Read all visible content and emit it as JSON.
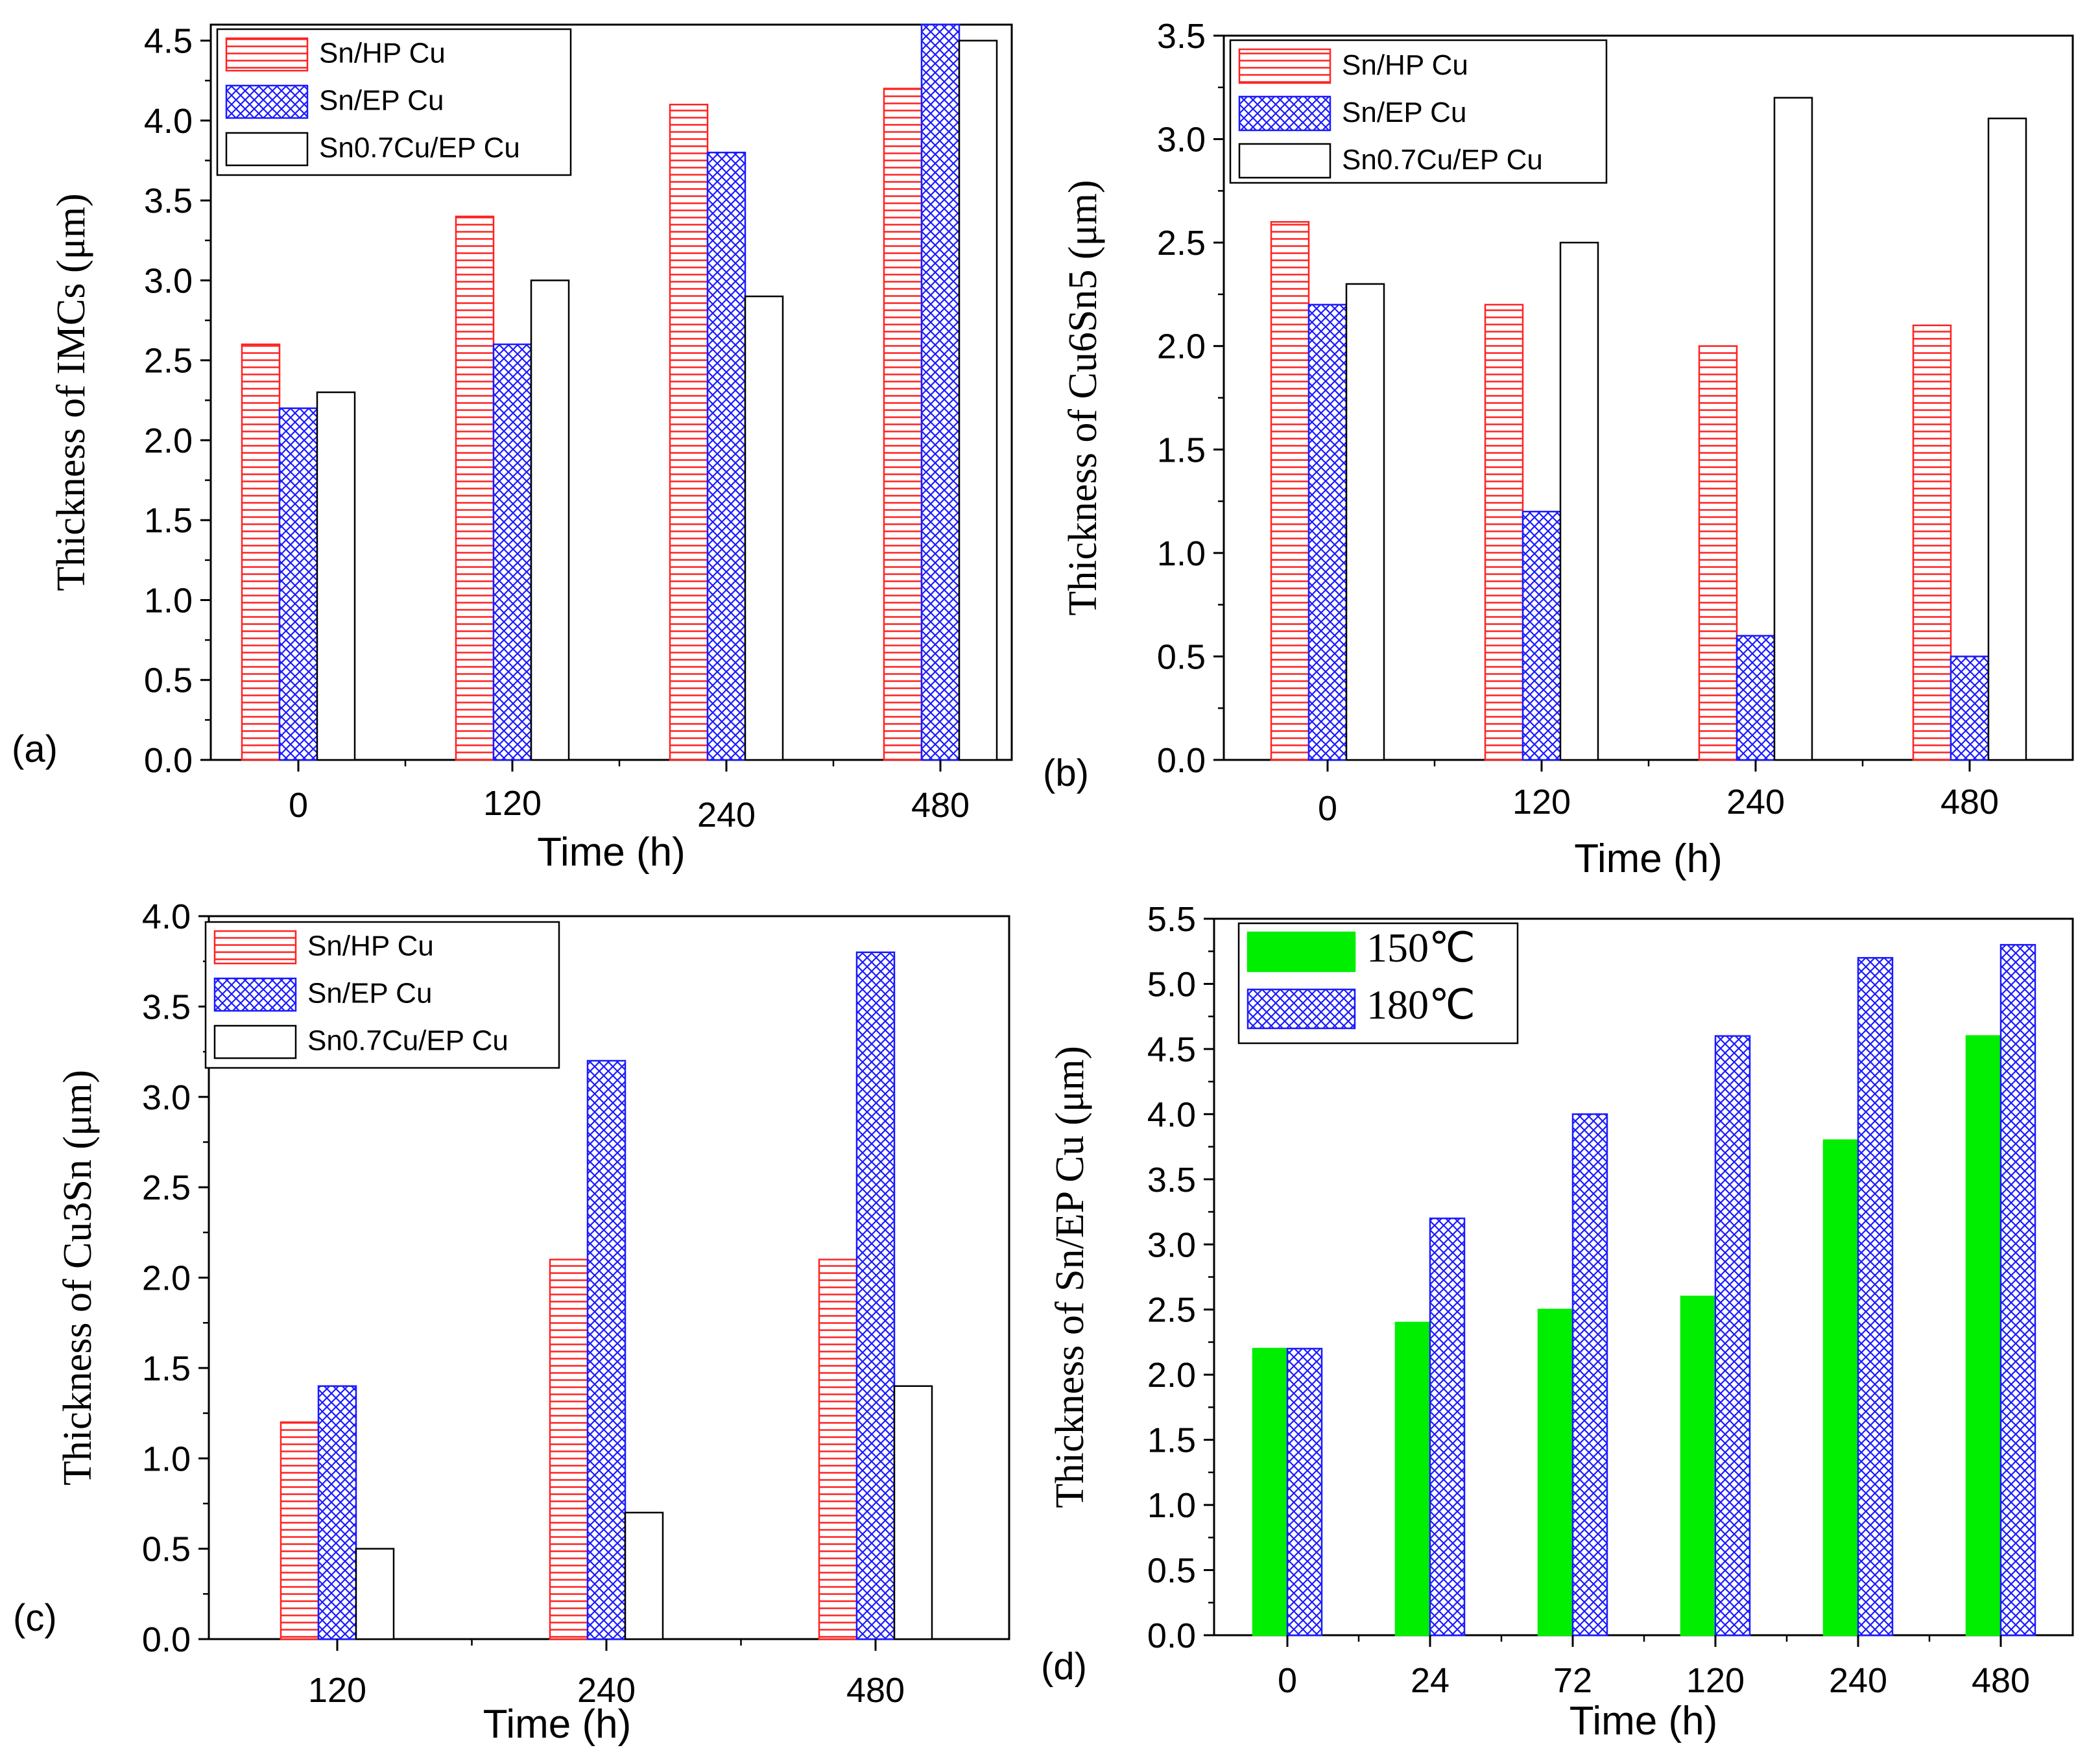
{
  "colors": {
    "hp": "#ff2222",
    "ep": "#1a1aff",
    "cu07": "#000000",
    "c150": "#00ee00",
    "c180": "#1a1aff"
  },
  "chart_data": [
    {
      "panel": "(a)",
      "type": "bar",
      "xlabel": "Time (h)",
      "ylabel": "Thickness of IMCs (μm)",
      "categories": [
        "0",
        "120",
        "240",
        "480"
      ],
      "ylim": [
        0,
        4.6
      ],
      "yticks": [
        "0.0",
        "0.5",
        "1.0",
        "1.5",
        "2.0",
        "2.5",
        "3.0",
        "3.5",
        "4.0",
        "4.5"
      ],
      "series": [
        {
          "name": "Sn/HP Cu",
          "pattern": "hlines-red",
          "values": [
            2.6,
            3.4,
            4.1,
            4.2
          ]
        },
        {
          "name": "Sn/EP Cu",
          "pattern": "cross-blue",
          "values": [
            2.2,
            2.6,
            3.8,
            4.6
          ]
        },
        {
          "name": "Sn0.7Cu/EP Cu",
          "pattern": "open-black",
          "values": [
            2.3,
            3.0,
            2.9,
            4.5
          ]
        }
      ],
      "legend": "top-left"
    },
    {
      "panel": "(b)",
      "type": "bar",
      "xlabel": "Time (h)",
      "ylabel": "Thickness of Cu6Sn5 (μm)",
      "categories": [
        "0",
        "120",
        "240",
        "480"
      ],
      "ylim": [
        0,
        3.5
      ],
      "yticks": [
        "0.0",
        "0.5",
        "1.0",
        "1.5",
        "2.0",
        "2.5",
        "3.0",
        "3.5"
      ],
      "series": [
        {
          "name": "Sn/HP Cu",
          "pattern": "hlines-red",
          "values": [
            2.6,
            2.2,
            2.0,
            2.1
          ]
        },
        {
          "name": "Sn/EP Cu",
          "pattern": "cross-blue",
          "values": [
            2.2,
            1.2,
            0.6,
            0.5
          ]
        },
        {
          "name": "Sn0.7Cu/EP Cu",
          "pattern": "open-black",
          "values": [
            2.3,
            2.5,
            3.2,
            3.1
          ]
        }
      ],
      "legend": "top-left"
    },
    {
      "panel": "(c)",
      "type": "bar",
      "xlabel": "Time (h)",
      "ylabel": "Thickness of Cu3Sn (μm)",
      "categories": [
        "120",
        "240",
        "480"
      ],
      "ylim": [
        0,
        4.0
      ],
      "yticks": [
        "0.0",
        "0.5",
        "1.0",
        "1.5",
        "2.0",
        "2.5",
        "3.0",
        "3.5",
        "4.0"
      ],
      "series": [
        {
          "name": "Sn/HP Cu",
          "pattern": "hlines-red",
          "values": [
            1.2,
            2.1,
            2.1
          ]
        },
        {
          "name": "Sn/EP Cu",
          "pattern": "cross-blue",
          "values": [
            1.4,
            3.2,
            3.8
          ]
        },
        {
          "name": "Sn0.7Cu/EP Cu",
          "pattern": "open-black",
          "values": [
            0.5,
            0.7,
            1.4
          ]
        }
      ],
      "legend": "top-left"
    },
    {
      "panel": "(d)",
      "type": "bar",
      "xlabel": "Time (h)",
      "ylabel": "Thickness of  Sn/EP Cu (μm)",
      "categories": [
        "0",
        "24",
        "72",
        "120",
        "240",
        "480"
      ],
      "ylim": [
        0,
        5.5
      ],
      "yticks": [
        "0.0",
        "0.5",
        "1.0",
        "1.5",
        "2.0",
        "2.5",
        "3.0",
        "3.5",
        "4.0",
        "4.5",
        "5.0",
        "5.5"
      ],
      "series": [
        {
          "name": "150℃",
          "pattern": "solid-green",
          "values": [
            2.2,
            2.4,
            2.5,
            2.6,
            3.8,
            4.6
          ]
        },
        {
          "name": "180℃",
          "pattern": "cross-blue",
          "values": [
            2.2,
            3.2,
            4.0,
            4.6,
            5.2,
            5.3
          ]
        }
      ],
      "legend": "top-left"
    }
  ]
}
